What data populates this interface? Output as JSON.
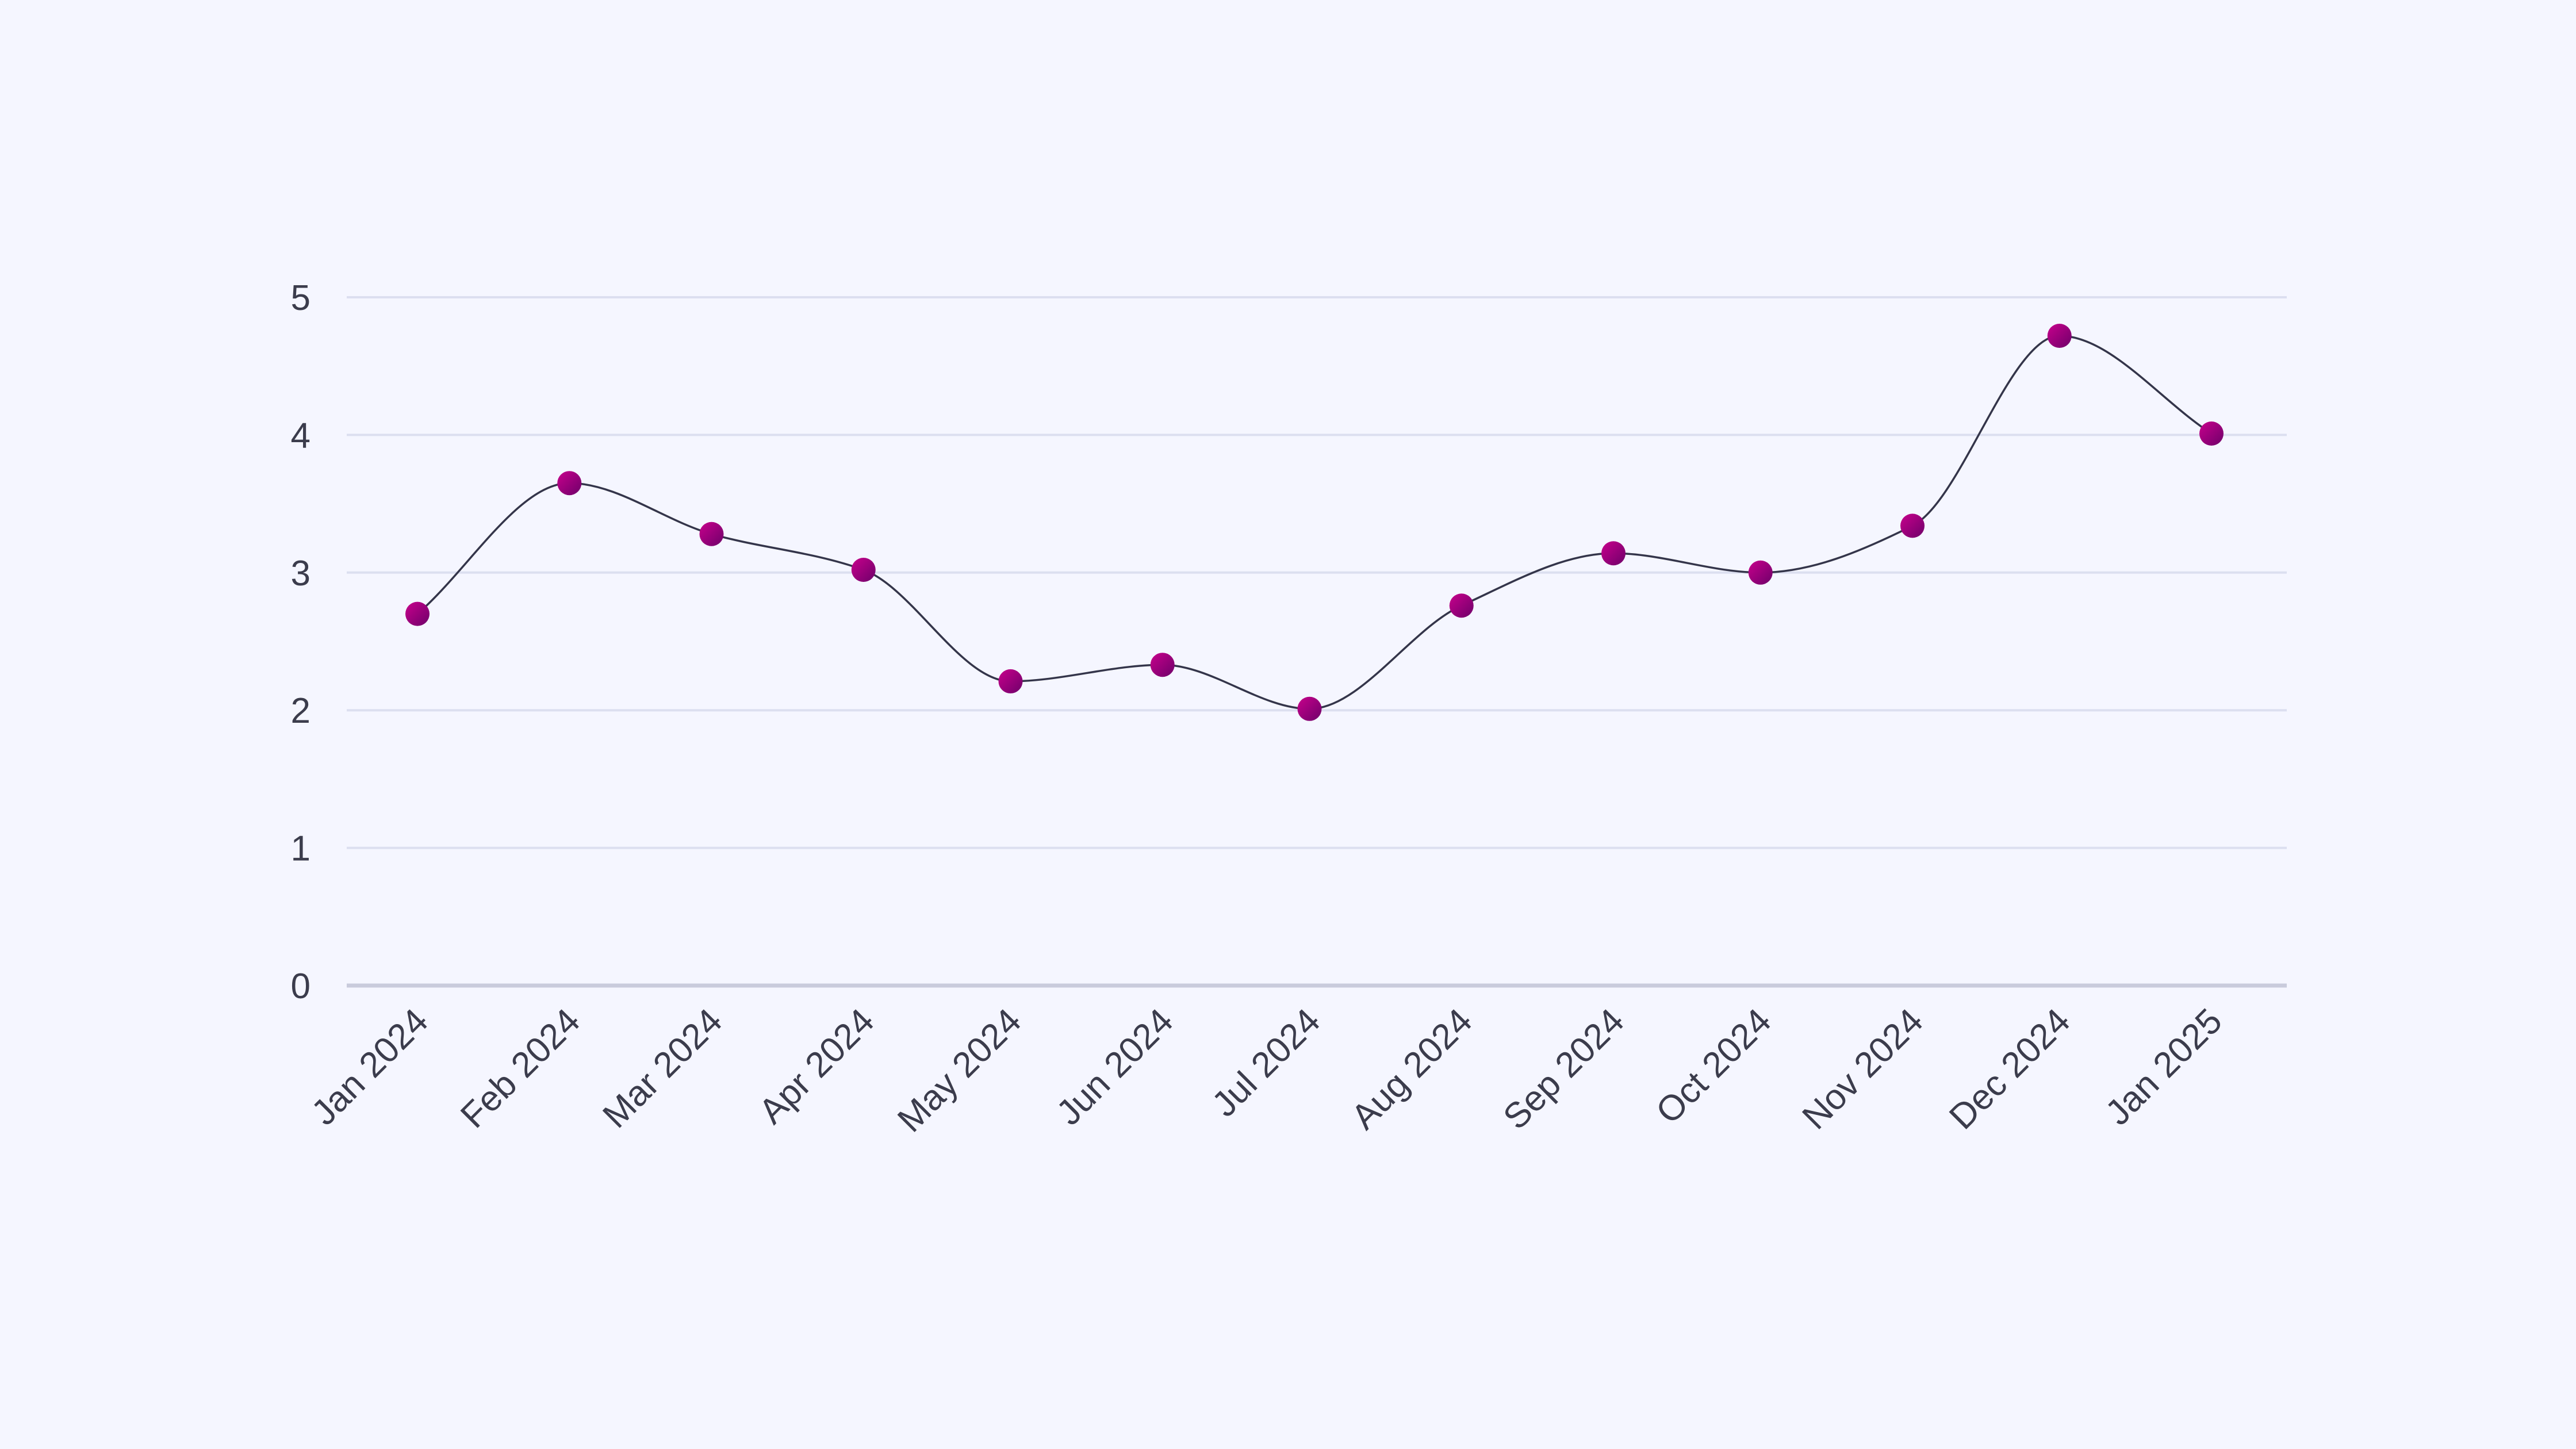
{
  "chart_data": {
    "type": "line",
    "title": "",
    "xlabel": "",
    "ylabel": "",
    "x_type": "date",
    "categories": [
      "Jan 2024",
      "Feb 2024",
      "Mar 2024",
      "Apr 2024",
      "May 2024",
      "Jun 2024",
      "Jul 2024",
      "Aug 2024",
      "Sep 2024",
      "Oct 2024",
      "Nov 2024",
      "Dec 2024",
      "Jan 2025"
    ],
    "x": [
      "2024-01-01",
      "2024-02-01",
      "2024-03-01",
      "2024-04-01",
      "2024-05-01",
      "2024-06-01",
      "2024-07-01",
      "2024-08-01",
      "2024-09-01",
      "2024-10-01",
      "2024-11-01",
      "2024-12-01",
      "2025-01-01"
    ],
    "series": [
      {
        "values": [
          2.7,
          3.65,
          3.28,
          3.02,
          2.21,
          2.33,
          2.01,
          2.76,
          3.14,
          3.0,
          3.34,
          4.72,
          4.01
        ]
      }
    ],
    "ylim": [
      0,
      5
    ],
    "yticks": [
      "0",
      "1",
      "2",
      "3",
      "4",
      "5"
    ],
    "grid": true,
    "curve": "smooth",
    "colors": {
      "line": "#34354a",
      "marker_top": "#c8008c",
      "marker_bottom": "#6e006a",
      "grid": "#dcdff0",
      "axis": "#c9cbdc",
      "text": "#3b3c4c",
      "background": "#f5f6ff"
    }
  }
}
